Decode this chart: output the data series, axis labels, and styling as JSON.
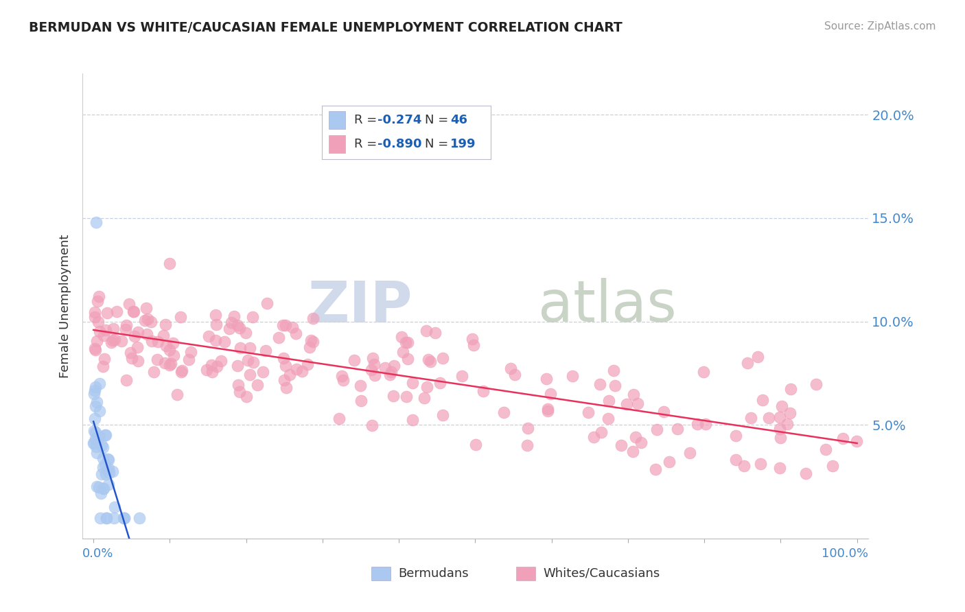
{
  "title": "BERMUDAN VS WHITE/CAUCASIAN FEMALE UNEMPLOYMENT CORRELATION CHART",
  "source": "Source: ZipAtlas.com",
  "ylabel": "Female Unemployment",
  "bermudan_R": -0.274,
  "bermudan_N": 46,
  "white_R": -0.89,
  "white_N": 199,
  "bermudan_color": "#aac8f0",
  "bermudan_line_color": "#2255cc",
  "white_color": "#f0a0b8",
  "white_line_color": "#e8305a",
  "background_color": "#ffffff",
  "grid_color": "#c8d0e0",
  "watermark_zip_color": "#c0cce0",
  "watermark_atlas_color": "#b8c8b8",
  "legend_label_color": "#333333",
  "legend_value_color": "#1a5fb4",
  "right_axis_color": "#4488cc",
  "bottom_axis_color": "#4488cc",
  "y_max": 0.22,
  "y_ticks": [
    0.05,
    0.1,
    0.15,
    0.2
  ],
  "y_tick_labels": [
    "5.0%",
    "10.0%",
    "15.0%",
    "20.0%"
  ]
}
